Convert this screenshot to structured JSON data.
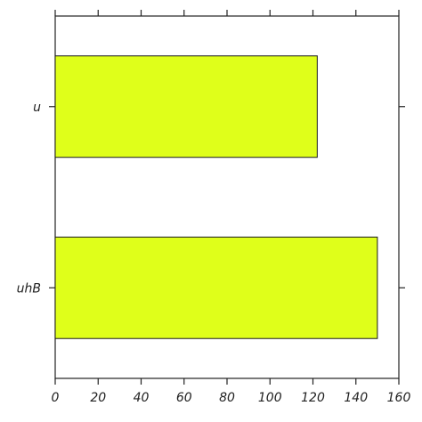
{
  "chart_data": {
    "type": "bar",
    "orientation": "horizontal",
    "title": "",
    "xlabel": "",
    "ylabel": "",
    "categories": [
      "u",
      "uhB"
    ],
    "values": [
      122,
      150
    ],
    "xlim": [
      0,
      160
    ],
    "xticks": [
      0,
      20,
      40,
      60,
      80,
      100,
      120,
      140,
      160
    ],
    "xtick_labels": [
      "0",
      "20",
      "40",
      "60",
      "80",
      "100",
      "120",
      "140",
      "160"
    ],
    "grid": false,
    "legend": "none",
    "colors": {
      "bar_fill": "#dfff1a",
      "bar_edge": "#1a1a1a",
      "axis": "#222222",
      "background": "#ffffff"
    }
  }
}
